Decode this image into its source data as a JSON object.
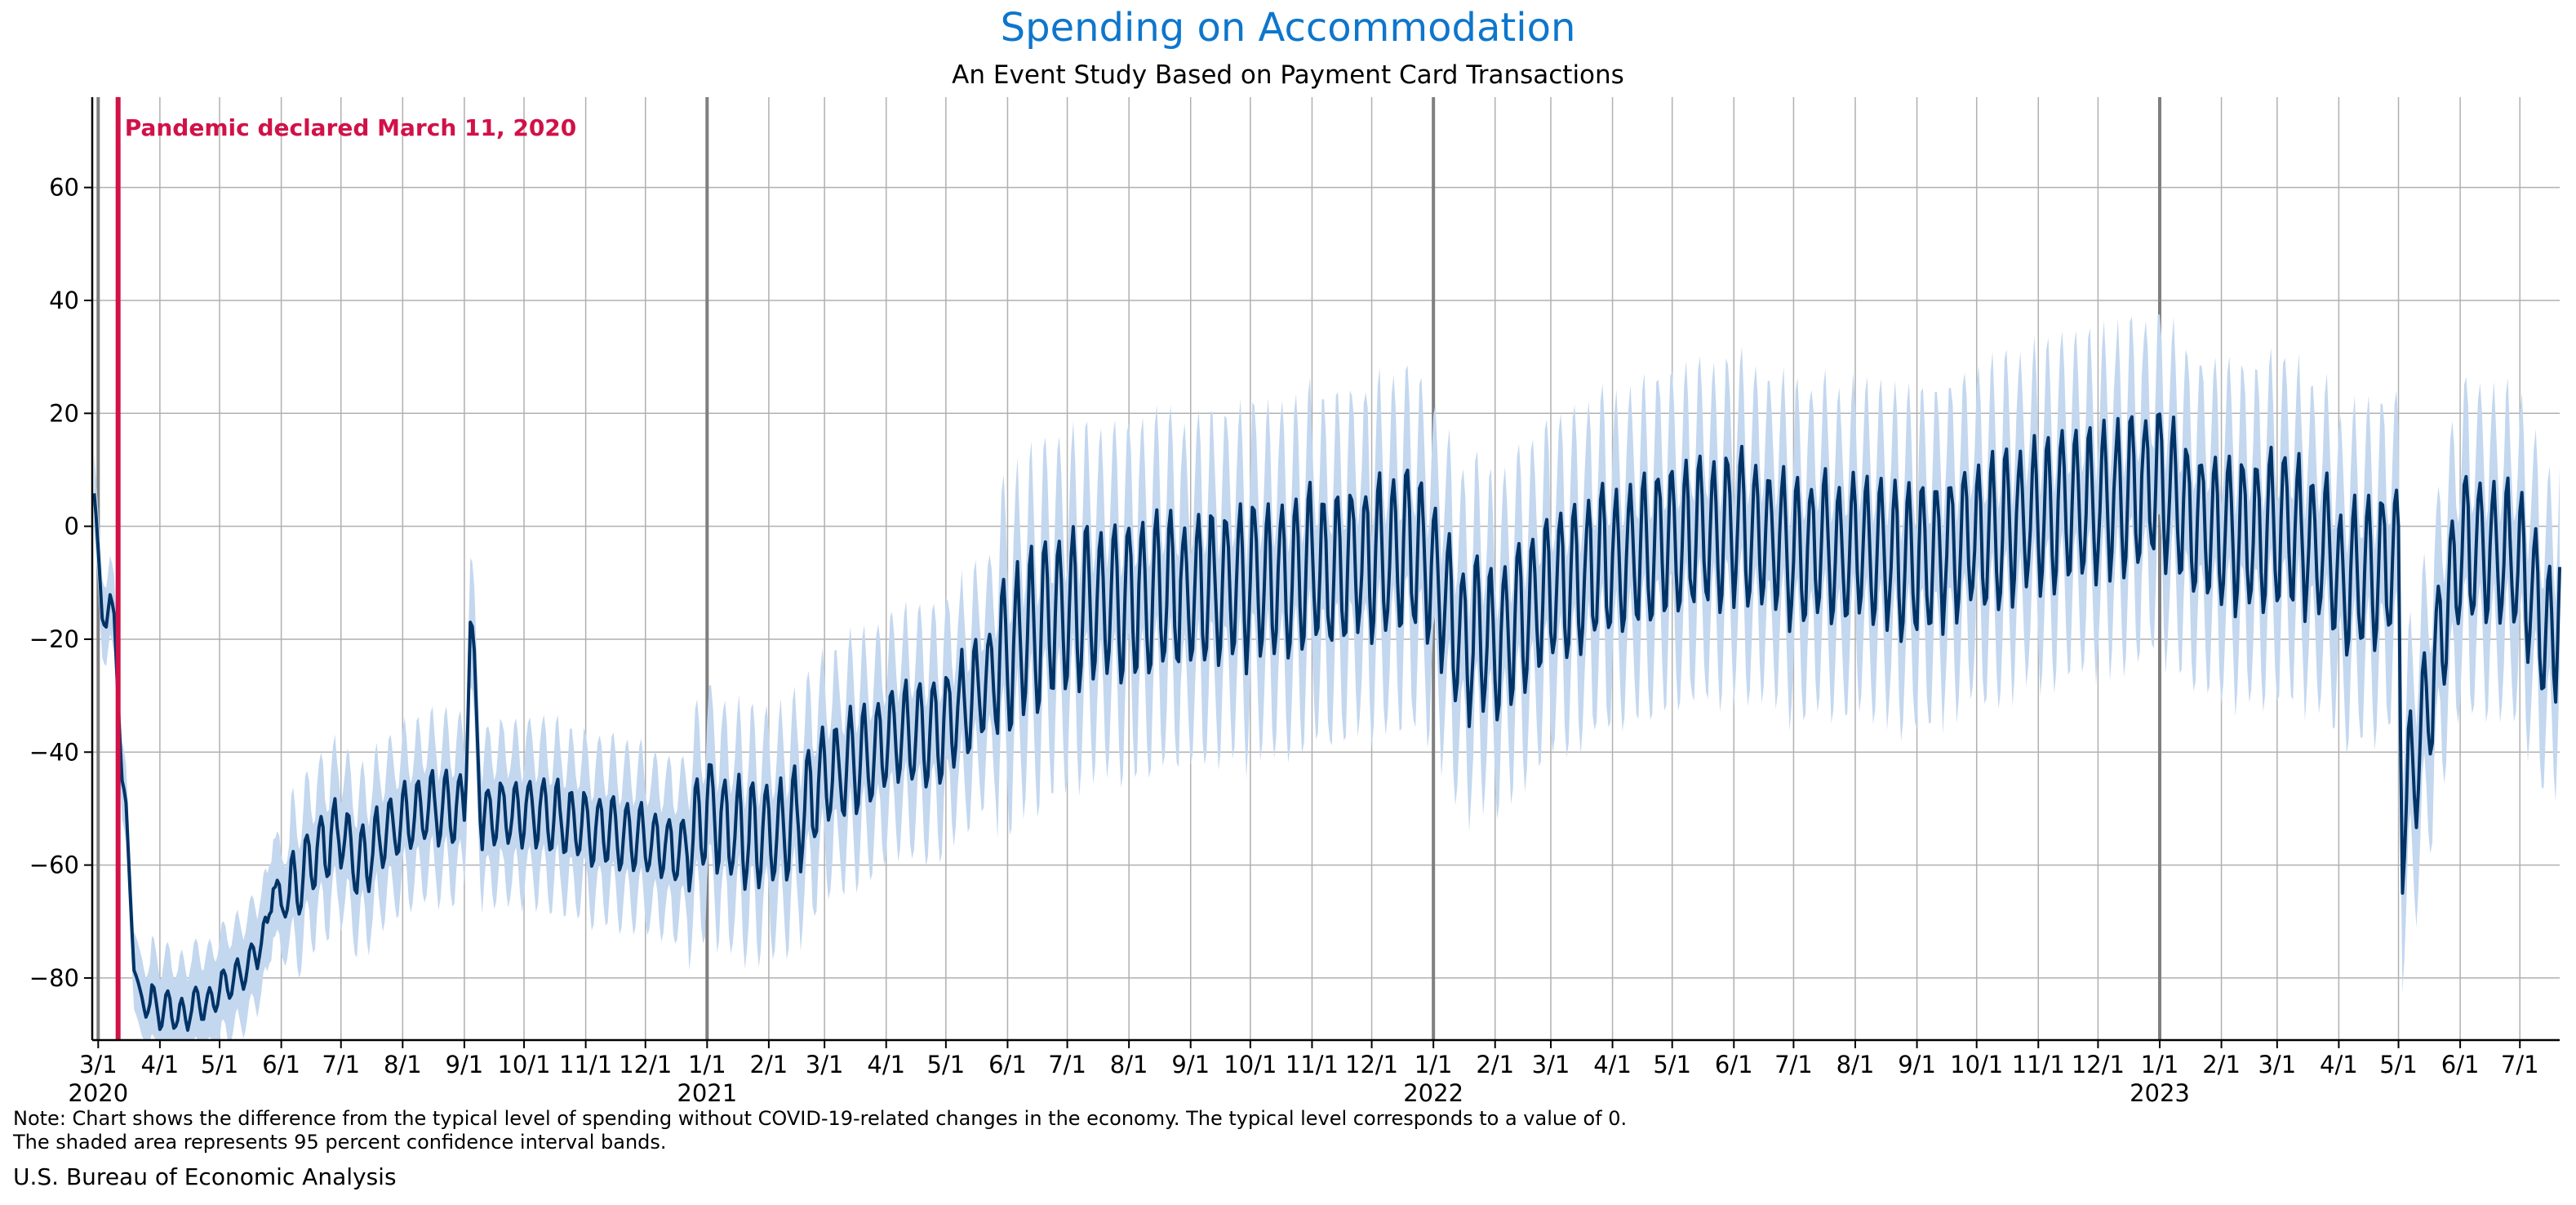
{
  "title": "Spending on Accommodation",
  "subtitle": "An Event Study Based on Payment Card Transactions",
  "note_line1": "Note: Chart shows the difference from the typical level of spending without COVID-19-related changes in the economy. The typical level corresponds to a value of 0.",
  "note_line2": "The shaded area represents 95 percent confidence interval bands.",
  "source": "U.S. Bureau of Economic Analysis",
  "colors": {
    "title": "#0e76cc",
    "line": "#003366",
    "band": "#c3d7ef",
    "event": "#d11148",
    "grid": "#b0b0b0",
    "year_line": "#7f7f7f"
  },
  "chart_data": {
    "type": "line",
    "ylim": [
      -91,
      76
    ],
    "y_ticks": [
      -80,
      -60,
      -40,
      -20,
      0,
      20,
      40,
      60
    ],
    "x_range": [
      "2020-02-27",
      "2023-07-21"
    ],
    "grid": true,
    "x_ticks": [
      {
        "date": "2020-03-01",
        "label": "3/1",
        "year": "2020"
      },
      {
        "date": "2020-04-01",
        "label": "4/1"
      },
      {
        "date": "2020-05-01",
        "label": "5/1"
      },
      {
        "date": "2020-06-01",
        "label": "6/1"
      },
      {
        "date": "2020-07-01",
        "label": "7/1"
      },
      {
        "date": "2020-08-01",
        "label": "8/1"
      },
      {
        "date": "2020-09-01",
        "label": "9/1"
      },
      {
        "date": "2020-10-01",
        "label": "10/1"
      },
      {
        "date": "2020-11-01",
        "label": "11/1"
      },
      {
        "date": "2020-12-01",
        "label": "12/1"
      },
      {
        "date": "2021-01-01",
        "label": "1/1",
        "year": "2021"
      },
      {
        "date": "2021-02-01",
        "label": "2/1"
      },
      {
        "date": "2021-03-01",
        "label": "3/1"
      },
      {
        "date": "2021-04-01",
        "label": "4/1"
      },
      {
        "date": "2021-05-01",
        "label": "5/1"
      },
      {
        "date": "2021-06-01",
        "label": "6/1"
      },
      {
        "date": "2021-07-01",
        "label": "7/1"
      },
      {
        "date": "2021-08-01",
        "label": "8/1"
      },
      {
        "date": "2021-09-01",
        "label": "9/1"
      },
      {
        "date": "2021-10-01",
        "label": "10/1"
      },
      {
        "date": "2021-11-01",
        "label": "11/1"
      },
      {
        "date": "2021-12-01",
        "label": "12/1"
      },
      {
        "date": "2022-01-01",
        "label": "1/1",
        "year": "2022"
      },
      {
        "date": "2022-02-01",
        "label": "2/1"
      },
      {
        "date": "2022-03-01",
        "label": "3/1"
      },
      {
        "date": "2022-04-01",
        "label": "4/1"
      },
      {
        "date": "2022-05-01",
        "label": "5/1"
      },
      {
        "date": "2022-06-01",
        "label": "6/1"
      },
      {
        "date": "2022-07-01",
        "label": "7/1"
      },
      {
        "date": "2022-08-01",
        "label": "8/1"
      },
      {
        "date": "2022-09-01",
        "label": "9/1"
      },
      {
        "date": "2022-10-01",
        "label": "10/1"
      },
      {
        "date": "2022-11-01",
        "label": "11/1"
      },
      {
        "date": "2022-12-01",
        "label": "12/1"
      },
      {
        "date": "2023-01-01",
        "label": "1/1",
        "year": "2023"
      },
      {
        "date": "2023-02-01",
        "label": "2/1"
      },
      {
        "date": "2023-03-01",
        "label": "3/1"
      },
      {
        "date": "2023-04-01",
        "label": "4/1"
      },
      {
        "date": "2023-05-01",
        "label": "5/1"
      },
      {
        "date": "2023-06-01",
        "label": "6/1"
      },
      {
        "date": "2023-07-01",
        "label": "7/1"
      }
    ],
    "event": {
      "date": "2020-03-11",
      "label": "Pandemic declared March 11, 2020"
    },
    "series": [
      {
        "values_by_date": [
          [
            "2020-02-28",
            6
          ],
          [
            "2020-03-01",
            -5
          ],
          [
            "2020-03-03",
            -16
          ],
          [
            "2020-03-05",
            -17
          ],
          [
            "2020-03-07",
            -13
          ],
          [
            "2020-03-09",
            -16
          ],
          [
            "2020-03-11",
            -30
          ],
          [
            "2020-03-13",
            -45
          ],
          [
            "2020-03-15",
            -50
          ],
          [
            "2020-03-17",
            -64
          ],
          [
            "2020-03-19",
            -78
          ],
          [
            "2020-03-22",
            -83
          ],
          [
            "2020-03-25",
            -86
          ],
          [
            "2020-03-28",
            -84
          ],
          [
            "2020-04-01",
            -86
          ],
          [
            "2020-04-05",
            -85
          ],
          [
            "2020-04-10",
            -87
          ],
          [
            "2020-04-15",
            -86
          ],
          [
            "2020-04-20",
            -84
          ],
          [
            "2020-04-25",
            -85
          ],
          [
            "2020-05-01",
            -82
          ],
          [
            "2020-05-05",
            -81
          ],
          [
            "2020-05-10",
            -80
          ],
          [
            "2020-05-15",
            -78
          ],
          [
            "2020-05-20",
            -75
          ],
          [
            "2020-05-25",
            -71
          ],
          [
            "2020-05-28",
            -62
          ],
          [
            "2020-06-01",
            -68
          ],
          [
            "2020-06-07",
            -64
          ],
          [
            "2020-06-14",
            -60
          ],
          [
            "2020-06-21",
            -57
          ],
          [
            "2020-06-28",
            -55
          ],
          [
            "2020-07-01",
            -54
          ],
          [
            "2020-07-10",
            -60
          ],
          [
            "2020-07-20",
            -56
          ],
          [
            "2020-08-01",
            -52
          ],
          [
            "2020-08-15",
            -50
          ],
          [
            "2020-09-01",
            -50
          ],
          [
            "2020-09-04",
            -16
          ],
          [
            "2020-09-10",
            -52
          ],
          [
            "2020-10-01",
            -50
          ],
          [
            "2020-11-01",
            -53
          ],
          [
            "2020-12-01",
            -56
          ],
          [
            "2020-12-20",
            -58
          ],
          [
            "2021-01-01",
            -50
          ],
          [
            "2021-01-15",
            -54
          ],
          [
            "2021-02-01",
            -55
          ],
          [
            "2021-02-15",
            -52
          ],
          [
            "2021-03-01",
            -45
          ],
          [
            "2021-04-01",
            -38
          ],
          [
            "2021-05-01",
            -35
          ],
          [
            "2021-05-29",
            -25
          ],
          [
            "2021-06-15",
            -18
          ],
          [
            "2021-07-01",
            -15
          ],
          [
            "2021-08-01",
            -12
          ],
          [
            "2021-09-01",
            -12
          ],
          [
            "2021-10-01",
            -10
          ],
          [
            "2021-11-01",
            -8
          ],
          [
            "2021-12-01",
            -6
          ],
          [
            "2021-12-22",
            -4
          ],
          [
            "2022-01-01",
            -8
          ],
          [
            "2022-01-15",
            -20
          ],
          [
            "2022-02-01",
            -20
          ],
          [
            "2022-03-01",
            -12
          ],
          [
            "2022-04-01",
            -6
          ],
          [
            "2022-05-01",
            -2
          ],
          [
            "2022-06-01",
            0
          ],
          [
            "2022-07-01",
            -4
          ],
          [
            "2022-08-01",
            -4
          ],
          [
            "2022-09-01",
            -6
          ],
          [
            "2022-10-01",
            -2
          ],
          [
            "2022-11-01",
            2
          ],
          [
            "2022-12-01",
            4
          ],
          [
            "2022-12-31",
            8
          ],
          [
            "2023-01-15",
            2
          ],
          [
            "2023-02-01",
            -2
          ],
          [
            "2023-03-01",
            0
          ],
          [
            "2023-03-28",
            -5
          ],
          [
            "2023-04-01",
            -10
          ],
          [
            "2023-05-01",
            -6
          ],
          [
            "2023-05-03",
            -52
          ],
          [
            "2023-06-01",
            -4
          ],
          [
            "2023-07-01",
            -6
          ],
          [
            "2023-07-18",
            -22
          ],
          [
            "2023-07-21",
            -7
          ]
        ]
      }
    ]
  }
}
